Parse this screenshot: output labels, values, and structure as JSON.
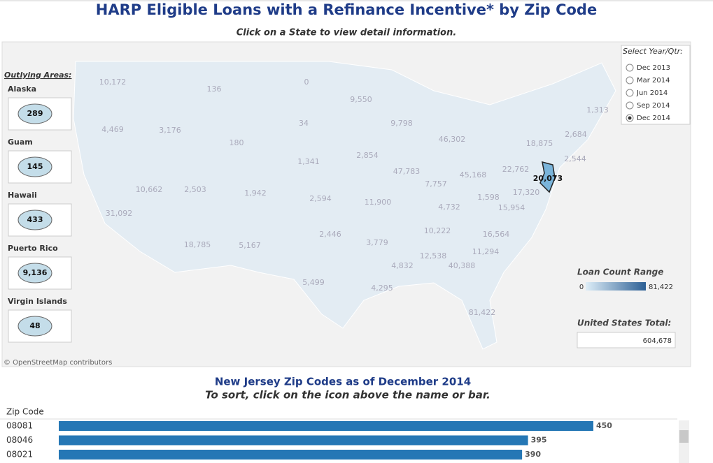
{
  "header": {
    "title": "HARP Eligible Loans with a Refinance Incentive* by Zip Code",
    "subtitle": "Click on a State to view detail information."
  },
  "outlying": {
    "title": "Outlying Areas:",
    "areas": [
      {
        "name": "Alaska",
        "value": "289"
      },
      {
        "name": "Guam",
        "value": "145"
      },
      {
        "name": "Hawaii",
        "value": "433"
      },
      {
        "name": "Puerto Rico",
        "value": "9,136"
      },
      {
        "name": "Virgin Islands",
        "value": "48"
      }
    ]
  },
  "map": {
    "states": [
      "10,172",
      "136",
      "0",
      "9,550",
      "1,313",
      "4,469",
      "3,176",
      "34",
      "9,798",
      "2,684",
      "46,302",
      "18,875",
      "180",
      "2,854",
      "2,544",
      "1,341",
      "47,783",
      "22,762",
      "45,168",
      "20,073",
      "10,662",
      "2,503",
      "1,942",
      "7,757",
      "17,320",
      "2,594",
      "11,900",
      "1,598",
      "4,732",
      "15,954",
      "31,092",
      "10,222",
      "16,564",
      "2,446",
      "3,779",
      "18,785",
      "5,167",
      "12,538",
      "11,294",
      "40,388",
      "4,832",
      "5,499",
      "4,295",
      "81,422"
    ],
    "attribution": "© OpenStreetMap contributors"
  },
  "filter": {
    "title": "Select Year/Qtr:",
    "options": [
      "Dec 2013",
      "Mar 2014",
      "Jun 2014",
      "Sep 2014",
      "Dec 2014"
    ],
    "selected": 4
  },
  "legend": {
    "title": "Loan Count Range",
    "min": "0",
    "max": "81,422"
  },
  "total": {
    "label": "United States Total:",
    "value": "604,678"
  },
  "chart_data": {
    "type": "bar",
    "title": "New Jersey Zip Codes as of December 2014",
    "subtitle": "To sort, click on the icon above the name or bar.",
    "category_label": "Zip Code",
    "categories": [
      "08081",
      "08046",
      "08021"
    ],
    "values": [
      450,
      395,
      390
    ],
    "color": "#2577b5",
    "xlim": [
      0,
      450
    ]
  }
}
